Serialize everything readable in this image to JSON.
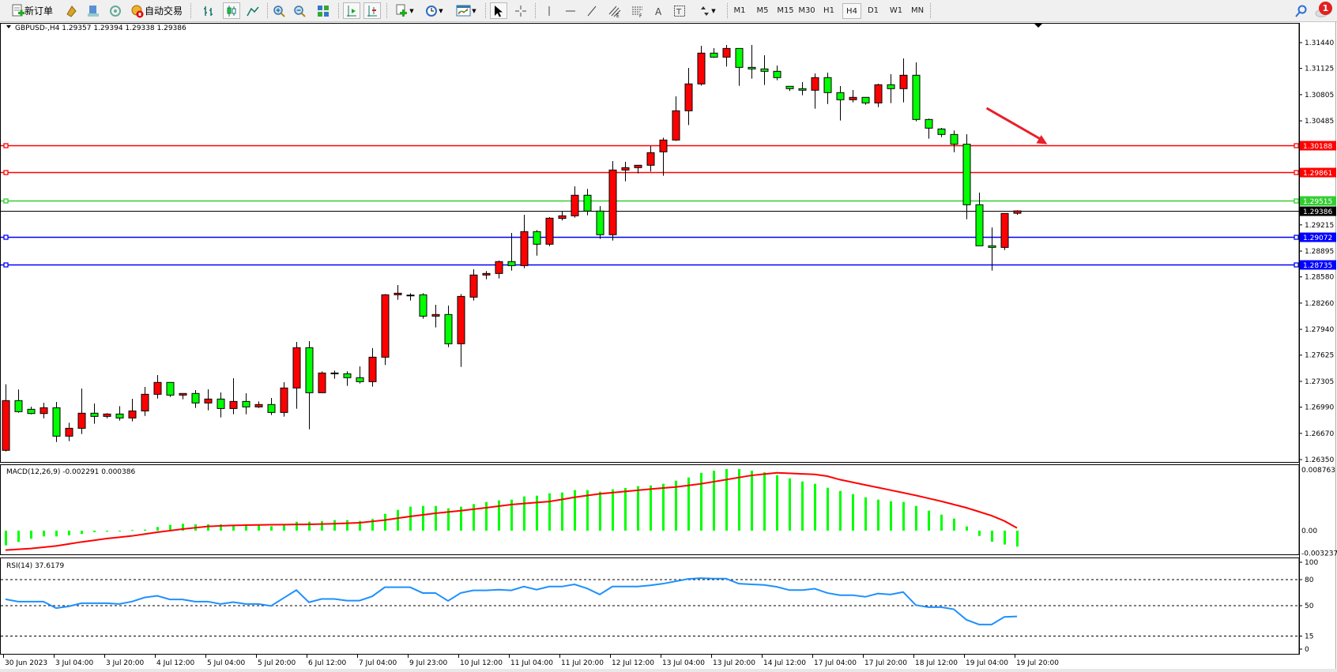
{
  "toolbar": {
    "new_order_label": "新订单",
    "auto_trading_label": "自动交易",
    "timeframes": [
      "M1",
      "M5",
      "M15",
      "M30",
      "H1",
      "H4",
      "D1",
      "W1",
      "MN"
    ],
    "selected_timeframe": "H4",
    "notification_count": "1",
    "icons": [
      "new-order-icon",
      "market-watch-icon",
      "navigator-icon",
      "signals-icon",
      "auto-trading-icon",
      "bar-chart-icon",
      "candlestick-icon",
      "line-chart-icon",
      "zoom-in-icon",
      "zoom-out-icon",
      "tile-windows-icon",
      "chart-shift-icon",
      "auto-scroll-icon",
      "indicators-icon",
      "periods-icon",
      "templates-icon",
      "cursor-icon",
      "crosshair-icon",
      "vertical-line-icon",
      "horizontal-line-icon",
      "trendline-icon",
      "equidistant-channel-icon",
      "fibonacci-icon",
      "text-icon",
      "text-label-icon",
      "arrows-icon",
      "search-icon",
      "notification-icon"
    ]
  },
  "chart": {
    "header": "GBPUSD-,H4  1.29357 1.29394 1.29338 1.29386",
    "current_price_label": "1.29386"
  },
  "chart_data": {
    "type": "candlestick",
    "symbol": "GBPUSD-",
    "timeframe": "H4",
    "bull_color": "#ff0000",
    "bear_color": "#00ff00",
    "ylim": [
      1.2635,
      1.3144
    ],
    "y_ticks": [
      "1.31440",
      "1.31125",
      "1.30805",
      "1.30485",
      "1.29215",
      "1.28895",
      "1.28580",
      "1.28260",
      "1.27940",
      "1.27625",
      "1.27305",
      "1.26990",
      "1.26670",
      "1.26350"
    ],
    "x_tick_labels": [
      "30 Jun 2023",
      "3 Jul 04:00",
      "3 Jul 20:00",
      "4 Jul 12:00",
      "5 Jul 04:00",
      "5 Jul 20:00",
      "6 Jul 12:00",
      "7 Jul 04:00",
      "9 Jul 23:00",
      "10 Jul 12:00",
      "11 Jul 04:00",
      "11 Jul 20:00",
      "12 Jul 12:00",
      "13 Jul 04:00",
      "13 Jul 20:00",
      "14 Jul 12:00",
      "17 Jul 04:00",
      "17 Jul 20:00",
      "18 Jul 12:00",
      "19 Jul 04:00",
      "19 Jul 20:00"
    ],
    "ohlc": [
      [
        1.26463,
        1.27269,
        1.2645,
        1.2707
      ],
      [
        1.2707,
        1.27205,
        1.26922,
        1.26935
      ],
      [
        1.26964,
        1.26996,
        1.26903,
        1.26912
      ],
      [
        1.26912,
        1.27044,
        1.26854,
        1.26983
      ],
      [
        1.26983,
        1.27054,
        1.26565,
        1.26636
      ],
      [
        1.26636,
        1.268,
        1.26575,
        1.26732
      ],
      [
        1.26732,
        1.27218,
        1.26662,
        1.26916
      ],
      [
        1.26916,
        1.27035,
        1.26787,
        1.26877
      ],
      [
        1.26877,
        1.26916,
        1.26854,
        1.26906
      ],
      [
        1.26906,
        1.27002,
        1.26826,
        1.26858
      ],
      [
        1.26858,
        1.27092,
        1.26816,
        1.26944
      ],
      [
        1.26944,
        1.27237,
        1.26883,
        1.27147
      ],
      [
        1.27147,
        1.27382,
        1.27095,
        1.27292
      ],
      [
        1.27292,
        1.27292,
        1.27115,
        1.27137
      ],
      [
        1.27137,
        1.27157,
        1.27086,
        1.27157
      ],
      [
        1.27157,
        1.27198,
        1.2698,
        1.27041
      ],
      [
        1.27041,
        1.27208,
        1.26951,
        1.27089
      ],
      [
        1.27089,
        1.27169,
        1.26864,
        1.26973
      ],
      [
        1.26973,
        1.27343,
        1.26903,
        1.2706
      ],
      [
        1.2706,
        1.2716,
        1.26903,
        1.26993
      ],
      [
        1.26993,
        1.2706,
        1.2698,
        1.27022
      ],
      [
        1.27022,
        1.27102,
        1.26893,
        1.26925
      ],
      [
        1.26925,
        1.27295,
        1.26874,
        1.27224
      ],
      [
        1.27224,
        1.27786,
        1.2697,
        1.27716
      ],
      [
        1.27716,
        1.27796,
        1.2672,
        1.27166
      ],
      [
        1.27166,
        1.27426,
        1.27166,
        1.27407
      ],
      [
        1.27407,
        1.27436,
        1.27337,
        1.27404
      ],
      [
        1.27398,
        1.27427,
        1.2725,
        1.2735
      ],
      [
        1.2735,
        1.27488,
        1.27279,
        1.27301
      ],
      [
        1.27301,
        1.2771,
        1.2724,
        1.276
      ],
      [
        1.276,
        1.28371,
        1.27504,
        1.28362
      ],
      [
        1.28362,
        1.28481,
        1.28301,
        1.28381
      ],
      [
        1.28358,
        1.28381,
        1.28291,
        1.28352
      ],
      [
        1.28362,
        1.28381,
        1.28069,
        1.28101
      ],
      [
        1.28101,
        1.2824,
        1.27963,
        1.28121
      ],
      [
        1.28121,
        1.2823,
        1.27722,
        1.27764
      ],
      [
        1.27764,
        1.28371,
        1.27481,
        1.28342
      ],
      [
        1.28333,
        1.28673,
        1.28291,
        1.28603
      ],
      [
        1.28603,
        1.28651,
        1.28551,
        1.28622
      ],
      [
        1.28622,
        1.28779,
        1.28561,
        1.28767
      ],
      [
        1.28767,
        1.29117,
        1.28657,
        1.28718
      ],
      [
        1.28718,
        1.29338,
        1.28686,
        1.29133
      ],
      [
        1.29133,
        1.29152,
        1.2884,
        1.28979
      ],
      [
        1.28979,
        1.2931,
        1.28956,
        1.29297
      ],
      [
        1.29294,
        1.29381,
        1.29268,
        1.29326
      ],
      [
        1.29326,
        1.29686,
        1.29303,
        1.29577
      ],
      [
        1.29577,
        1.29654,
        1.29332,
        1.29384
      ],
      [
        1.29384,
        1.29445,
        1.29043,
        1.29095
      ],
      [
        1.29095,
        1.29994,
        1.29024,
        1.29885
      ],
      [
        1.29885,
        1.29985,
        1.29747,
        1.29914
      ],
      [
        1.29914,
        1.29946,
        1.29843,
        1.29943
      ],
      [
        1.29943,
        1.30177,
        1.29866,
        1.30097
      ],
      [
        1.30107,
        1.3028,
        1.29814,
        1.30251
      ],
      [
        1.30251,
        1.30785,
        1.30241,
        1.30608
      ],
      [
        1.30608,
        1.31132,
        1.30434,
        1.30936
      ],
      [
        1.30936,
        1.31402,
        1.30916,
        1.31312
      ],
      [
        1.31312,
        1.31373,
        1.31254,
        1.31263
      ],
      [
        1.31263,
        1.31411,
        1.31148,
        1.31369
      ],
      [
        1.31369,
        1.31369,
        1.30913,
        1.31138
      ],
      [
        1.31138,
        1.31411,
        1.31,
        1.31119
      ],
      [
        1.31119,
        1.31286,
        1.30923,
        1.3109
      ],
      [
        1.3109,
        1.31161,
        1.30981,
        1.31013
      ],
      [
        1.30907,
        1.30907,
        1.30849,
        1.30878
      ],
      [
        1.30878,
        1.30958,
        1.30798,
        1.30859
      ],
      [
        1.30859,
        1.31064,
        1.30634,
        1.31013
      ],
      [
        1.31013,
        1.31074,
        1.30691,
        1.3083
      ],
      [
        1.3083,
        1.3091,
        1.30489,
        1.30743
      ],
      [
        1.30743,
        1.30862,
        1.30711,
        1.30772
      ],
      [
        1.30772,
        1.30772,
        1.30682,
        1.30704
      ],
      [
        1.30704,
        1.30939,
        1.30653,
        1.30926
      ],
      [
        1.30926,
        1.31055,
        1.30701,
        1.30878
      ],
      [
        1.30878,
        1.31247,
        1.30711,
        1.31042
      ],
      [
        1.31042,
        1.31199,
        1.30479,
        1.30502
      ],
      [
        1.30502,
        1.30512,
        1.30267,
        1.30396
      ],
      [
        1.30386,
        1.30399,
        1.30287,
        1.30319
      ],
      [
        1.30319,
        1.30367,
        1.30103,
        1.302
      ],
      [
        1.302,
        1.30322,
        1.29284,
        1.29461
      ],
      [
        1.29461,
        1.29609,
        1.2896,
        1.2896
      ],
      [
        1.2896,
        1.29184,
        1.28658,
        1.2894
      ],
      [
        1.2894,
        1.29358,
        1.28908,
        1.29355
      ],
      [
        1.29357,
        1.29394,
        1.29338,
        1.29386
      ]
    ],
    "horizontal_lines": [
      {
        "price": "1.30188",
        "color": "#ff0000",
        "label_text_color": "#ffffff"
      },
      {
        "price": "1.29861",
        "color": "#ff0000",
        "label_text_color": "#ffffff"
      },
      {
        "price": "1.29515",
        "color": "#32cd32",
        "label_text_color": "#ffffff"
      },
      {
        "price": "1.29072",
        "color": "#0000ff",
        "label_text_color": "#ffffff"
      },
      {
        "price": "1.28735",
        "color": "#0000ff",
        "label_text_color": "#ffffff"
      }
    ],
    "current_price": "1.29386",
    "arrow": {
      "color": "#e8202a",
      "from": {
        "bar": 77.6,
        "price": 1.3064
      },
      "to": {
        "bar": 82.4,
        "price": 1.302
      }
    },
    "macd": {
      "label": "MACD(12,26,9) -0.002291 0.000386",
      "y_ticks": [
        "0.008763",
        "0.00",
        "-0.003237"
      ],
      "ylim": [
        -0.003237,
        0.008763
      ],
      "histogram_color": "#00ff00",
      "signal_color": "#ff0000",
      "main": [
        -0.00212,
        -0.00163,
        -0.00117,
        -0.00083,
        -0.00083,
        -0.00068,
        -0.00049,
        -0.00023,
        -0.00015,
        -8e-05,
        8e-05,
        0.00015,
        0.00053,
        0.00083,
        0.00099,
        0.00091,
        0.00091,
        0.00091,
        0.00083,
        0.00076,
        0.00076,
        0.00064,
        0.00083,
        0.00129,
        0.00129,
        0.00136,
        0.00152,
        0.00152,
        0.0014,
        0.00167,
        0.00243,
        0.00299,
        0.00345,
        0.00356,
        0.00356,
        0.00322,
        0.00345,
        0.00383,
        0.00413,
        0.00436,
        0.00447,
        0.00493,
        0.00504,
        0.00538,
        0.0055,
        0.00584,
        0.00584,
        0.00561,
        0.00595,
        0.00614,
        0.00641,
        0.00652,
        0.00675,
        0.0072,
        0.00766,
        0.00834,
        0.00864,
        0.00887,
        0.00887,
        0.00864,
        0.00841,
        0.008,
        0.00754,
        0.00709,
        0.00675,
        0.00618,
        0.00572,
        0.00527,
        0.00481,
        0.00447,
        0.00424,
        0.00413,
        0.00356,
        0.00288,
        0.00231,
        0.00174,
        0.00061,
        -0.00076,
        -0.0016,
        -0.002,
        -0.00229
      ],
      "signal": [
        -0.0028,
        -0.00269,
        -0.00258,
        -0.00239,
        -0.0022,
        -0.00192,
        -0.00163,
        -0.00139,
        -0.00114,
        -0.00095,
        -0.00076,
        -0.0005,
        -0.00023,
        0.0,
        0.00023,
        0.00042,
        0.00061,
        0.00069,
        0.00076,
        0.0008,
        0.00083,
        0.00085,
        0.00087,
        0.00089,
        0.00091,
        0.00095,
        0.00099,
        0.00107,
        0.00114,
        0.00133,
        0.00152,
        0.00179,
        0.00205,
        0.00228,
        0.0025,
        0.00269,
        0.00288,
        0.00309,
        0.0033,
        0.00353,
        0.00375,
        0.00391,
        0.00406,
        0.0042,
        0.0045,
        0.00481,
        0.00506,
        0.00531,
        0.00548,
        0.00565,
        0.00582,
        0.00599,
        0.00614,
        0.00629,
        0.00652,
        0.00675,
        0.00705,
        0.00735,
        0.00766,
        0.00796,
        0.00815,
        0.00834,
        0.00826,
        0.00818,
        0.00811,
        0.00785,
        0.00735,
        0.00697,
        0.00659,
        0.00622,
        0.00584,
        0.00546,
        0.00508,
        0.00466,
        0.00424,
        0.00377,
        0.0033,
        0.00273,
        0.00216,
        0.0014,
        0.00039
      ]
    },
    "rsi": {
      "label": "RSI(14) 37.6179",
      "y_ticks": [
        "100",
        "80",
        "50",
        "15",
        "0"
      ],
      "levels": [
        80,
        50,
        15
      ],
      "ylim": [
        0,
        100
      ],
      "color": "#1e90ff",
      "values": [
        57.4,
        54.7,
        54.7,
        54.7,
        47.2,
        49.2,
        52.8,
        52.8,
        52.8,
        51.9,
        54.7,
        59.4,
        61.3,
        57.2,
        57.2,
        54.7,
        54.7,
        51.9,
        54.1,
        51.9,
        51.9,
        49.7,
        58.8,
        67.9,
        53.9,
        57.7,
        57.7,
        55.8,
        55.8,
        60.7,
        71.2,
        71.2,
        71.2,
        64.6,
        64.6,
        55.5,
        64.6,
        67.6,
        67.6,
        68.4,
        67.6,
        72.0,
        68.4,
        72.0,
        72.0,
        74.5,
        69.8,
        62.9,
        72.0,
        72.0,
        72.0,
        73.4,
        75.3,
        78.1,
        80.8,
        81.7,
        81.1,
        81.1,
        75.3,
        74.5,
        73.9,
        71.7,
        67.9,
        67.9,
        69.5,
        64.6,
        62.1,
        62.1,
        60.2,
        64.0,
        62.9,
        65.7,
        50.6,
        48.3,
        48.3,
        45.9,
        33.8,
        28.3,
        28.3,
        37.1,
        37.6
      ]
    }
  }
}
